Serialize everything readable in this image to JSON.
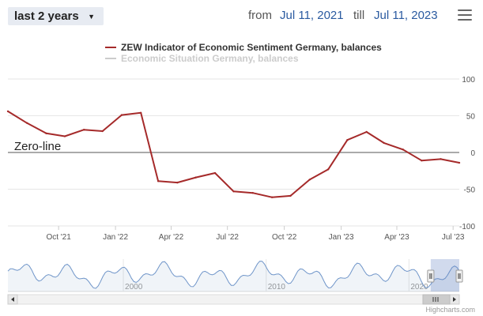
{
  "toolbar": {
    "range_label": "last 2 years",
    "from_label": "from",
    "from_date": "Jul 11, 2021",
    "till_label": "till",
    "till_date": "Jul 11, 2023",
    "menu_icon": "hamburger-menu-icon"
  },
  "chart_data": {
    "type": "line",
    "legend": [
      {
        "name": "ZEW Indicator of Economic Sentiment Germany, balances",
        "color": "#a52a2a",
        "visible": true
      },
      {
        "name": "Economic Situation Germany, balances",
        "color": "#cccccc",
        "visible": false
      }
    ],
    "legend_position": "top-center",
    "annotation": "Zero-line",
    "x_ticks": [
      "Oct '21",
      "Jan '22",
      "Apr '22",
      "Jul '22",
      "Oct '22",
      "Jan '23",
      "Apr '23",
      "Jul '23"
    ],
    "y_ticks": [
      "100",
      "50",
      "0",
      "-50",
      "-100"
    ],
    "ylim": [
      -100,
      100
    ],
    "xlim": [
      "2021-07-11",
      "2023-07-11"
    ],
    "series": [
      {
        "name": "ZEW Indicator of Economic Sentiment Germany, balances",
        "color": "#a52a2a",
        "x": [
          "2021-07-11",
          "2021-08-11",
          "2021-09-11",
          "2021-10-11",
          "2021-11-11",
          "2021-12-11",
          "2022-01-11",
          "2022-02-11",
          "2022-03-11",
          "2022-04-11",
          "2022-05-11",
          "2022-06-11",
          "2022-07-11",
          "2022-08-11",
          "2022-09-11",
          "2022-10-11",
          "2022-11-11",
          "2022-12-11",
          "2023-01-11",
          "2023-02-11",
          "2023-03-11",
          "2023-04-11",
          "2023-05-11",
          "2023-06-11",
          "2023-07-11"
        ],
        "values": [
          56,
          40,
          26,
          22,
          31,
          29,
          51,
          54,
          -39,
          -41,
          -34,
          -28,
          -53,
          -55,
          -61,
          -59,
          -37,
          -23,
          17,
          28,
          13,
          4,
          -11,
          -9,
          -14
        ]
      }
    ],
    "grid": true,
    "navigator": {
      "ticks": [
        "2000",
        "2010",
        "2020"
      ],
      "xlim": [
        "1991-12-01",
        "2023-07-11"
      ]
    }
  },
  "navigator": {
    "left_arrow_icon": "arrow-left-icon",
    "right_arrow_icon": "arrow-right-icon",
    "grip_icon": "scrollbar-grip-icon"
  },
  "credit": "Highcharts.com"
}
